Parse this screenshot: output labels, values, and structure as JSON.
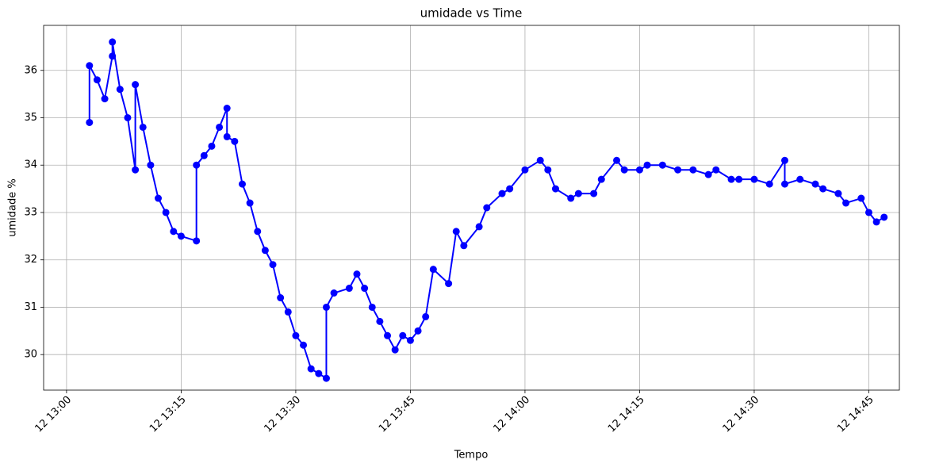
{
  "chart_data": {
    "type": "line",
    "title": "umidade vs Time",
    "x_label": "Tempo",
    "y_label": "umidade %",
    "x": [
      "12 13:03",
      "12 13:03",
      "12 13:04",
      "12 13:05",
      "12 13:06",
      "12 13:06",
      "12 13:07",
      "12 13:08",
      "12 13:09",
      "12 13:09",
      "12 13:10",
      "12 13:11",
      "12 13:12",
      "12 13:13",
      "12 13:14",
      "12 13:15",
      "12 13:17",
      "12 13:17",
      "12 13:18",
      "12 13:19",
      "12 13:20",
      "12 13:21",
      "12 13:21",
      "12 13:22",
      "12 13:23",
      "12 13:24",
      "12 13:25",
      "12 13:26",
      "12 13:27",
      "12 13:28",
      "12 13:29",
      "12 13:30",
      "12 13:31",
      "12 13:32",
      "12 13:33",
      "12 13:34",
      "12 13:34",
      "12 13:35",
      "12 13:37",
      "12 13:38",
      "12 13:39",
      "12 13:40",
      "12 13:41",
      "12 13:42",
      "12 13:43",
      "12 13:44",
      "12 13:45",
      "12 13:46",
      "12 13:47",
      "12 13:48",
      "12 13:50",
      "12 13:51",
      "12 13:52",
      "12 13:54",
      "12 13:55",
      "12 13:57",
      "12 13:58",
      "12 14:00",
      "12 14:02",
      "12 14:03",
      "12 14:04",
      "12 14:06",
      "12 14:07",
      "12 14:09",
      "12 14:10",
      "12 14:12",
      "12 14:13",
      "12 14:15",
      "12 14:16",
      "12 14:18",
      "12 14:20",
      "12 14:22",
      "12 14:24",
      "12 14:25",
      "12 14:27",
      "12 14:28",
      "12 14:30",
      "12 14:32",
      "12 14:34",
      "12 14:34",
      "12 14:36",
      "12 14:38",
      "12 14:39",
      "12 14:41",
      "12 14:42",
      "12 14:44",
      "12 14:45",
      "12 14:46",
      "12 14:47"
    ],
    "values": [
      34.9,
      36.1,
      35.8,
      35.4,
      36.3,
      36.6,
      35.6,
      35.0,
      33.9,
      35.7,
      34.8,
      34.0,
      33.3,
      33.0,
      32.6,
      32.5,
      32.4,
      34.0,
      34.2,
      34.4,
      34.8,
      35.2,
      34.6,
      34.5,
      33.6,
      33.2,
      32.6,
      32.2,
      31.9,
      31.2,
      30.9,
      30.4,
      30.2,
      29.7,
      29.6,
      29.5,
      31.0,
      31.3,
      31.4,
      31.7,
      31.4,
      31.0,
      30.7,
      30.4,
      30.1,
      30.4,
      30.3,
      30.5,
      30.8,
      31.8,
      31.5,
      32.6,
      32.3,
      32.7,
      33.1,
      33.4,
      33.5,
      33.9,
      34.1,
      33.9,
      33.5,
      33.3,
      33.4,
      33.4,
      33.7,
      34.1,
      33.9,
      33.9,
      34.0,
      34.0,
      33.9,
      33.9,
      33.8,
      33.9,
      33.7,
      33.7,
      33.7,
      33.6,
      34.1,
      33.6,
      33.7,
      33.6,
      33.5,
      33.4,
      33.2,
      33.3,
      33.0,
      32.8,
      32.9
    ],
    "color": "#0000ff",
    "xlim": [
      "12 12:57",
      "12 14:49"
    ],
    "xticks": [
      "12 13:00",
      "12 13:15",
      "12 13:30",
      "12 13:45",
      "12 14:00",
      "12 14:15",
      "12 14:30",
      "12 14:45"
    ],
    "ylim": [
      29.25,
      36.95
    ],
    "yticks": [
      30,
      31,
      32,
      33,
      34,
      35,
      36
    ],
    "grid": true
  }
}
